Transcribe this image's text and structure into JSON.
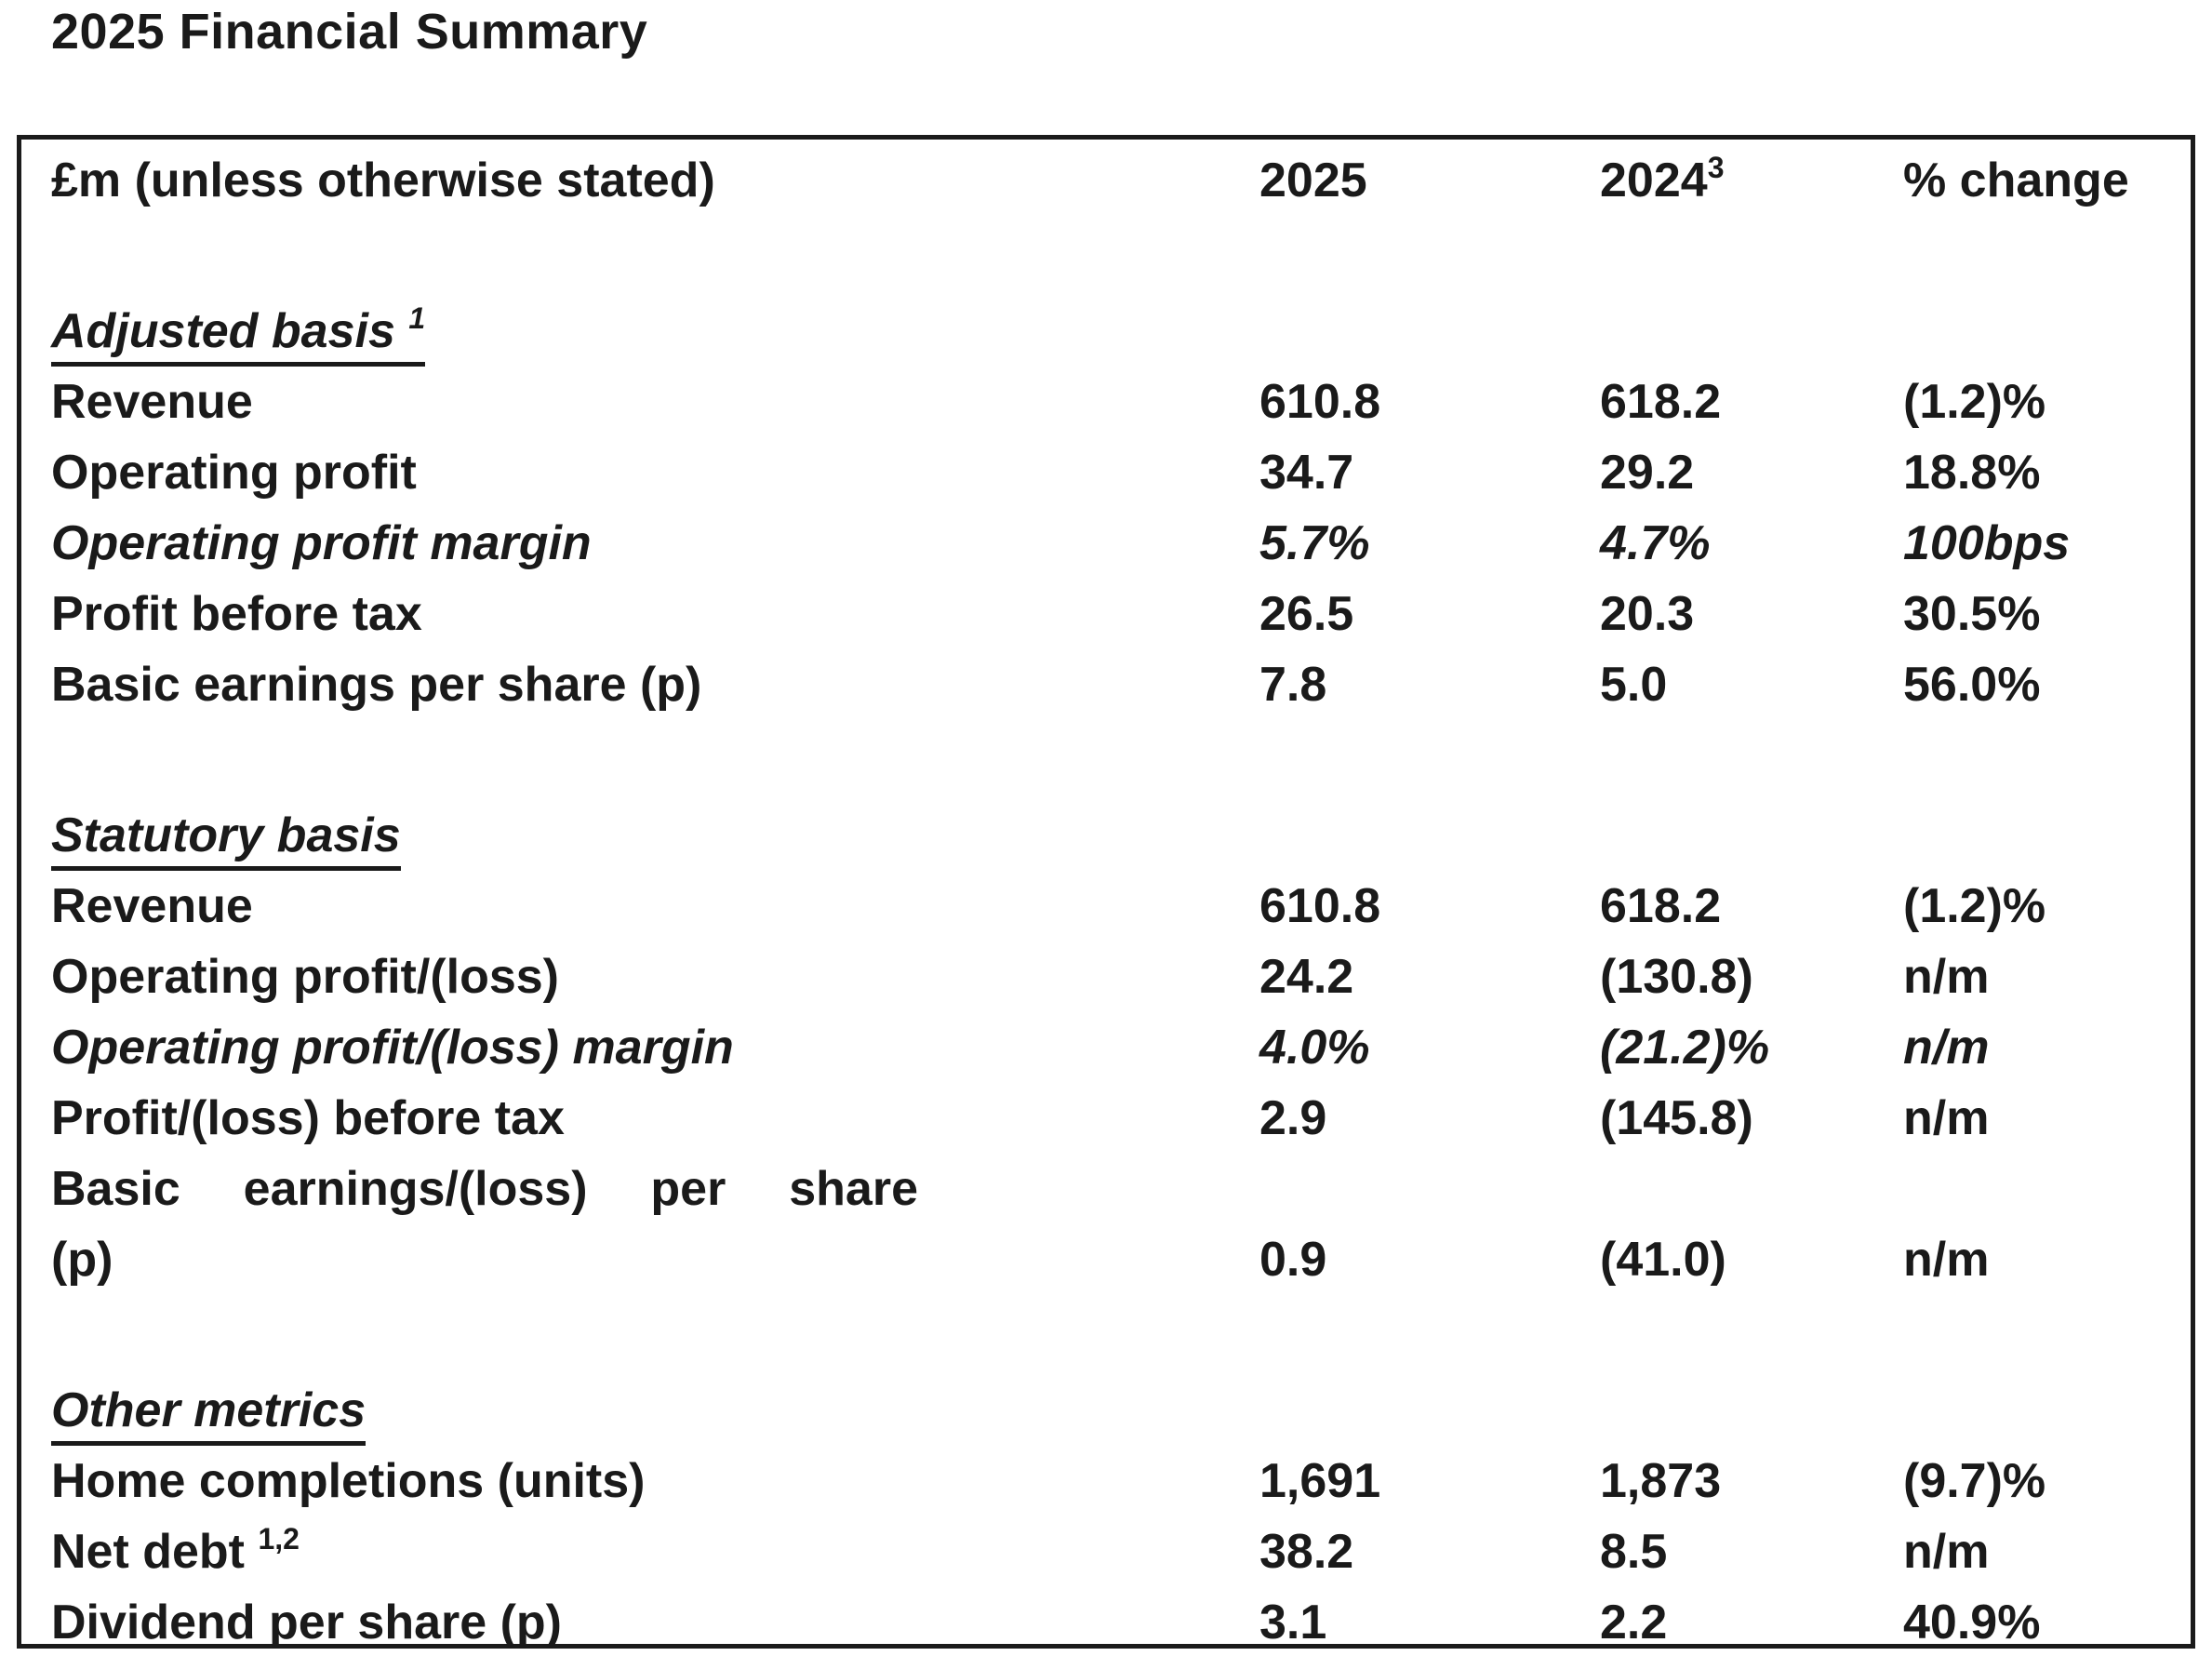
{
  "page_title": "2025 Financial Summary",
  "colors": {
    "text": "#1a1a1a",
    "border": "#1b1b1b",
    "background": "#ffffff"
  },
  "table": {
    "unit_header": "£m (unless otherwise stated)",
    "col_headers": [
      {
        "text": "2025",
        "sup": ""
      },
      {
        "text": "2024",
        "sup": "3"
      },
      {
        "text": "% change",
        "sup": ""
      }
    ],
    "sections": [
      {
        "heading": "Adjusted basis",
        "heading_sup": "1",
        "rows": [
          {
            "label": "Revenue",
            "values": [
              "610.8",
              "618.2",
              "(1.2)%"
            ]
          },
          {
            "label": "Operating profit",
            "values": [
              "34.7",
              "29.2",
              "18.8%"
            ]
          },
          {
            "label": "Operating profit margin",
            "italic": true,
            "values": [
              "5.7%",
              "4.7%",
              "100bps"
            ]
          },
          {
            "label": "Profit before tax",
            "values": [
              "26.5",
              "20.3",
              "30.5%"
            ]
          },
          {
            "label": "Basic earnings per share (p)",
            "values": [
              "7.8",
              "5.0",
              "56.0%"
            ]
          }
        ]
      },
      {
        "heading": "Statutory basis",
        "heading_sup": "",
        "rows": [
          {
            "label": "Revenue",
            "values": [
              "610.8",
              "618.2",
              "(1.2)%"
            ]
          },
          {
            "label": "Operating profit/(loss)",
            "values": [
              "24.2",
              "(130.8)",
              "n/m"
            ]
          },
          {
            "label": "Operating profit/(loss) margin",
            "italic": true,
            "values": [
              "4.0%",
              "(21.2)%",
              "n/m"
            ]
          },
          {
            "label": "Profit/(loss) before tax",
            "values": [
              "2.9",
              "(145.8)",
              "n/m"
            ]
          },
          {
            "label": "Basic earnings/(loss) per share",
            "label2": "(p)",
            "two_line": true,
            "values": [
              "0.9",
              "(41.0)",
              "n/m"
            ]
          }
        ]
      },
      {
        "heading": "Other metrics",
        "heading_sup": "",
        "rows": [
          {
            "label": "Home completions (units)",
            "values": [
              "1,691",
              "1,873",
              "(9.7)%"
            ]
          },
          {
            "label": "Net debt",
            "label_sup": "1,2",
            "values": [
              "38.2",
              "8.5",
              "n/m"
            ]
          },
          {
            "label": "Dividend per share (p)",
            "values": [
              "3.1",
              "2.2",
              "40.9%"
            ]
          }
        ]
      }
    ]
  }
}
